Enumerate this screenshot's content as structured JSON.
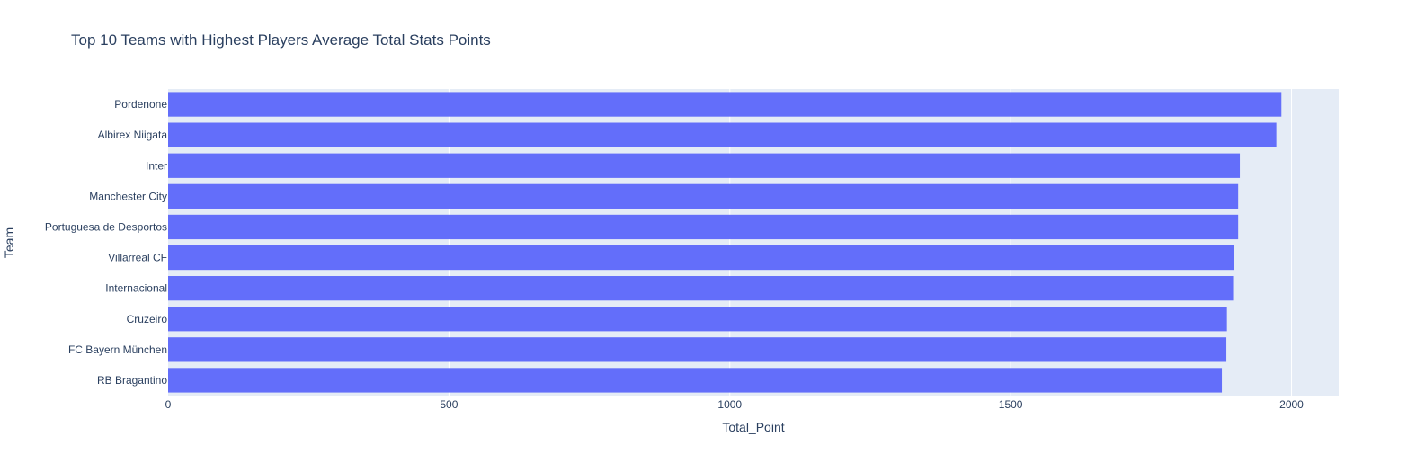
{
  "chart_data": {
    "type": "bar",
    "orientation": "horizontal",
    "title": "Top 10 Teams with Highest Players Average Total Stats Points",
    "xlabel": "Total_Point",
    "ylabel": "Team",
    "categories": [
      "Pordenone",
      "Albirex Niigata",
      "Inter",
      "Manchester City",
      "Portuguesa de Desportos",
      "Villarreal CF",
      "Internacional",
      "Cruzeiro",
      "FC Bayern München",
      "RB Bragantino"
    ],
    "values": [
      1982,
      1973,
      1908,
      1905,
      1905,
      1897,
      1896,
      1885,
      1884,
      1876
    ],
    "xlim": [
      0,
      2084
    ],
    "xticks": [
      0,
      500,
      1000,
      1500,
      2000
    ],
    "xtick_labels": [
      "0",
      "500",
      "1000",
      "1500",
      "2000"
    ],
    "grid": true,
    "colors": {
      "bar": "#636efa",
      "plot_bg": "#e5ecf6",
      "grid": "#ffffff",
      "text": "#2a3f5f"
    }
  }
}
